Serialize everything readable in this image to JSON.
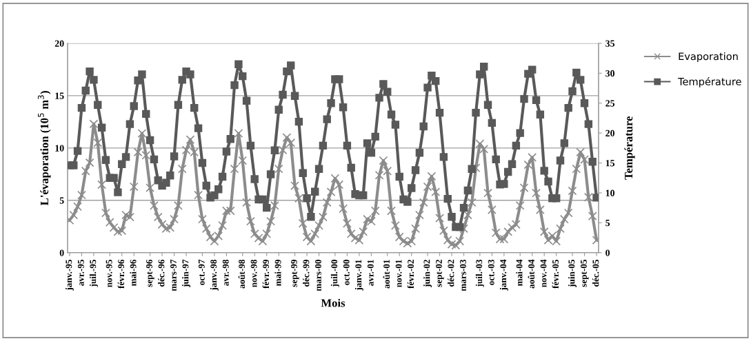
{
  "chart_data": {
    "type": "line",
    "xlabel": "Mois",
    "ylabel": "L'évaporation (10$^{5}$ m$^{3}$)",
    "y2label": "Température",
    "categories": [
      "janv.-95",
      null,
      null,
      "avr.-95",
      null,
      null,
      "juil.-95",
      null,
      null,
      null,
      "nov.-95",
      null,
      null,
      "févr.-96",
      null,
      null,
      "mai-96",
      null,
      null,
      null,
      "sept-96",
      null,
      null,
      "déc.-96",
      null,
      null,
      "mars-97",
      null,
      null,
      "juin-97",
      null,
      null,
      null,
      "oct.-97",
      null,
      null,
      "janv.-98",
      null,
      null,
      "avr.-98",
      null,
      null,
      null,
      "août-98",
      null,
      null,
      "nov.-98",
      null,
      null,
      "févr.-99",
      null,
      null,
      "mai-99",
      null,
      null,
      null,
      "sept-99",
      null,
      null,
      "déc.-99",
      null,
      null,
      "mars-00",
      null,
      null,
      null,
      "juil.-00",
      null,
      null,
      "oct.-00",
      null,
      null,
      "janv.-01",
      null,
      null,
      "avr.-01",
      null,
      null,
      null,
      "août-01",
      null,
      null,
      "nov.-01",
      null,
      null,
      "févr.-02",
      null,
      null,
      null,
      "juin-02",
      null,
      null,
      "sept-02",
      null,
      null,
      "déc.-02",
      null,
      null,
      "mars-03",
      null,
      null,
      null,
      "juil.-03",
      null,
      null,
      "oct.-03",
      null,
      null,
      "janv.-04",
      null,
      null,
      null,
      "mai-04",
      null,
      null,
      "août-04",
      null,
      null,
      "nov.-04",
      null,
      null,
      "févr.-05",
      null,
      null,
      null,
      "juin-05",
      null,
      null,
      "sept-05",
      null,
      null,
      "déc.-05"
    ],
    "series": [
      {
        "name": "Evaporation",
        "color": "#8c8c8c",
        "marker": "cross",
        "values": [
          3.1,
          3.6,
          4.4,
          5.5,
          7.8,
          8.6,
          12.3,
          10.5,
          6.5,
          3.8,
          2.9,
          2.4,
          2.0,
          2.1,
          3.6,
          3.4,
          6.3,
          9.6,
          11.4,
          9.3,
          6.2,
          4.5,
          3.4,
          2.7,
          2.3,
          2.4,
          3.2,
          4.5,
          8.0,
          9.8,
          10.8,
          9.6,
          5.5,
          3.2,
          2.3,
          1.5,
          1.1,
          1.6,
          2.6,
          4.0,
          4.0,
          8.0,
          11.4,
          8.8,
          4.8,
          3.0,
          1.8,
          1.4,
          1.1,
          1.8,
          3.0,
          4.5,
          8.0,
          9.8,
          11.0,
          10.5,
          6.4,
          5.2,
          2.8,
          1.5,
          1.1,
          1.8,
          2.6,
          3.4,
          4.8,
          5.8,
          7.1,
          6.5,
          4.2,
          2.8,
          1.8,
          1.4,
          1.2,
          2.0,
          3.2,
          3.0,
          4.0,
          7.4,
          8.8,
          7.8,
          4.0,
          2.6,
          1.5,
          1.1,
          0.9,
          1.1,
          2.3,
          3.6,
          4.8,
          6.3,
          7.3,
          5.8,
          3.3,
          2.1,
          1.2,
          0.8,
          0.7,
          1.1,
          2.3,
          3.6,
          4.8,
          8.1,
          10.4,
          9.9,
          5.7,
          4.1,
          1.9,
          1.3,
          1.3,
          2.0,
          2.4,
          2.7,
          4.5,
          6.2,
          8.4,
          9.1,
          5.7,
          4.1,
          2.0,
          1.2,
          1.6,
          1.1,
          2.3,
          3.2,
          3.8,
          5.9,
          8.0,
          9.6,
          8.9,
          5.3,
          3.5,
          1.2
        ]
      },
      {
        "name": "Température",
        "color": "#595959",
        "marker": "square",
        "axis": "y2",
        "values": [
          14.6,
          14.6,
          17.0,
          24.2,
          27.1,
          30.3,
          28.9,
          24.7,
          20.9,
          15.5,
          12.5,
          12.5,
          10.1,
          14.8,
          16.0,
          21.5,
          24.5,
          28.8,
          29.8,
          23.2,
          18.8,
          15.6,
          12.1,
          11.2,
          11.7,
          12.9,
          16.1,
          24.7,
          28.9,
          30.3,
          29.8,
          24.2,
          20.8,
          15.0,
          11.2,
          9.2,
          9.6,
          10.6,
          12.7,
          16.9,
          19.0,
          28.0,
          31.5,
          29.5,
          25.4,
          17.9,
          12.3,
          8.9,
          8.9,
          7.5,
          13.1,
          17.1,
          23.9,
          26.4,
          30.3,
          31.3,
          26.2,
          21.9,
          13.3,
          9.1,
          6.0,
          10.2,
          14.0,
          17.9,
          22.3,
          25.0,
          29.0,
          29.0,
          24.3,
          17.9,
          14.2,
          9.8,
          9.6,
          9.6,
          18.3,
          16.7,
          19.4,
          25.9,
          28.2,
          26.9,
          23.1,
          21.4,
          12.7,
          8.9,
          8.5,
          10.8,
          13.8,
          16.7,
          21.1,
          27.6,
          29.6,
          28.7,
          23.4,
          16.0,
          9.0,
          6.0,
          4.3,
          4.3,
          7.5,
          10.4,
          14.0,
          23.4,
          29.8,
          31.1,
          24.7,
          21.7,
          15.6,
          11.4,
          11.5,
          13.5,
          14.8,
          17.9,
          20.0,
          25.7,
          29.9,
          30.6,
          25.5,
          23.1,
          13.7,
          11.9,
          9.1,
          9.1,
          15.4,
          18.3,
          24.2,
          27.0,
          30.1,
          28.9,
          25.0,
          21.5,
          15.2,
          9.2
        ]
      }
    ],
    "ylim": [
      0,
      20
    ],
    "yticks": [
      0,
      5,
      10,
      15,
      20
    ],
    "y2lim": [
      0,
      35
    ],
    "y2ticks": [
      0,
      5,
      10,
      15,
      20,
      25,
      30,
      35
    ],
    "grid": "y",
    "legend": "top right",
    "line_style": "solid"
  }
}
